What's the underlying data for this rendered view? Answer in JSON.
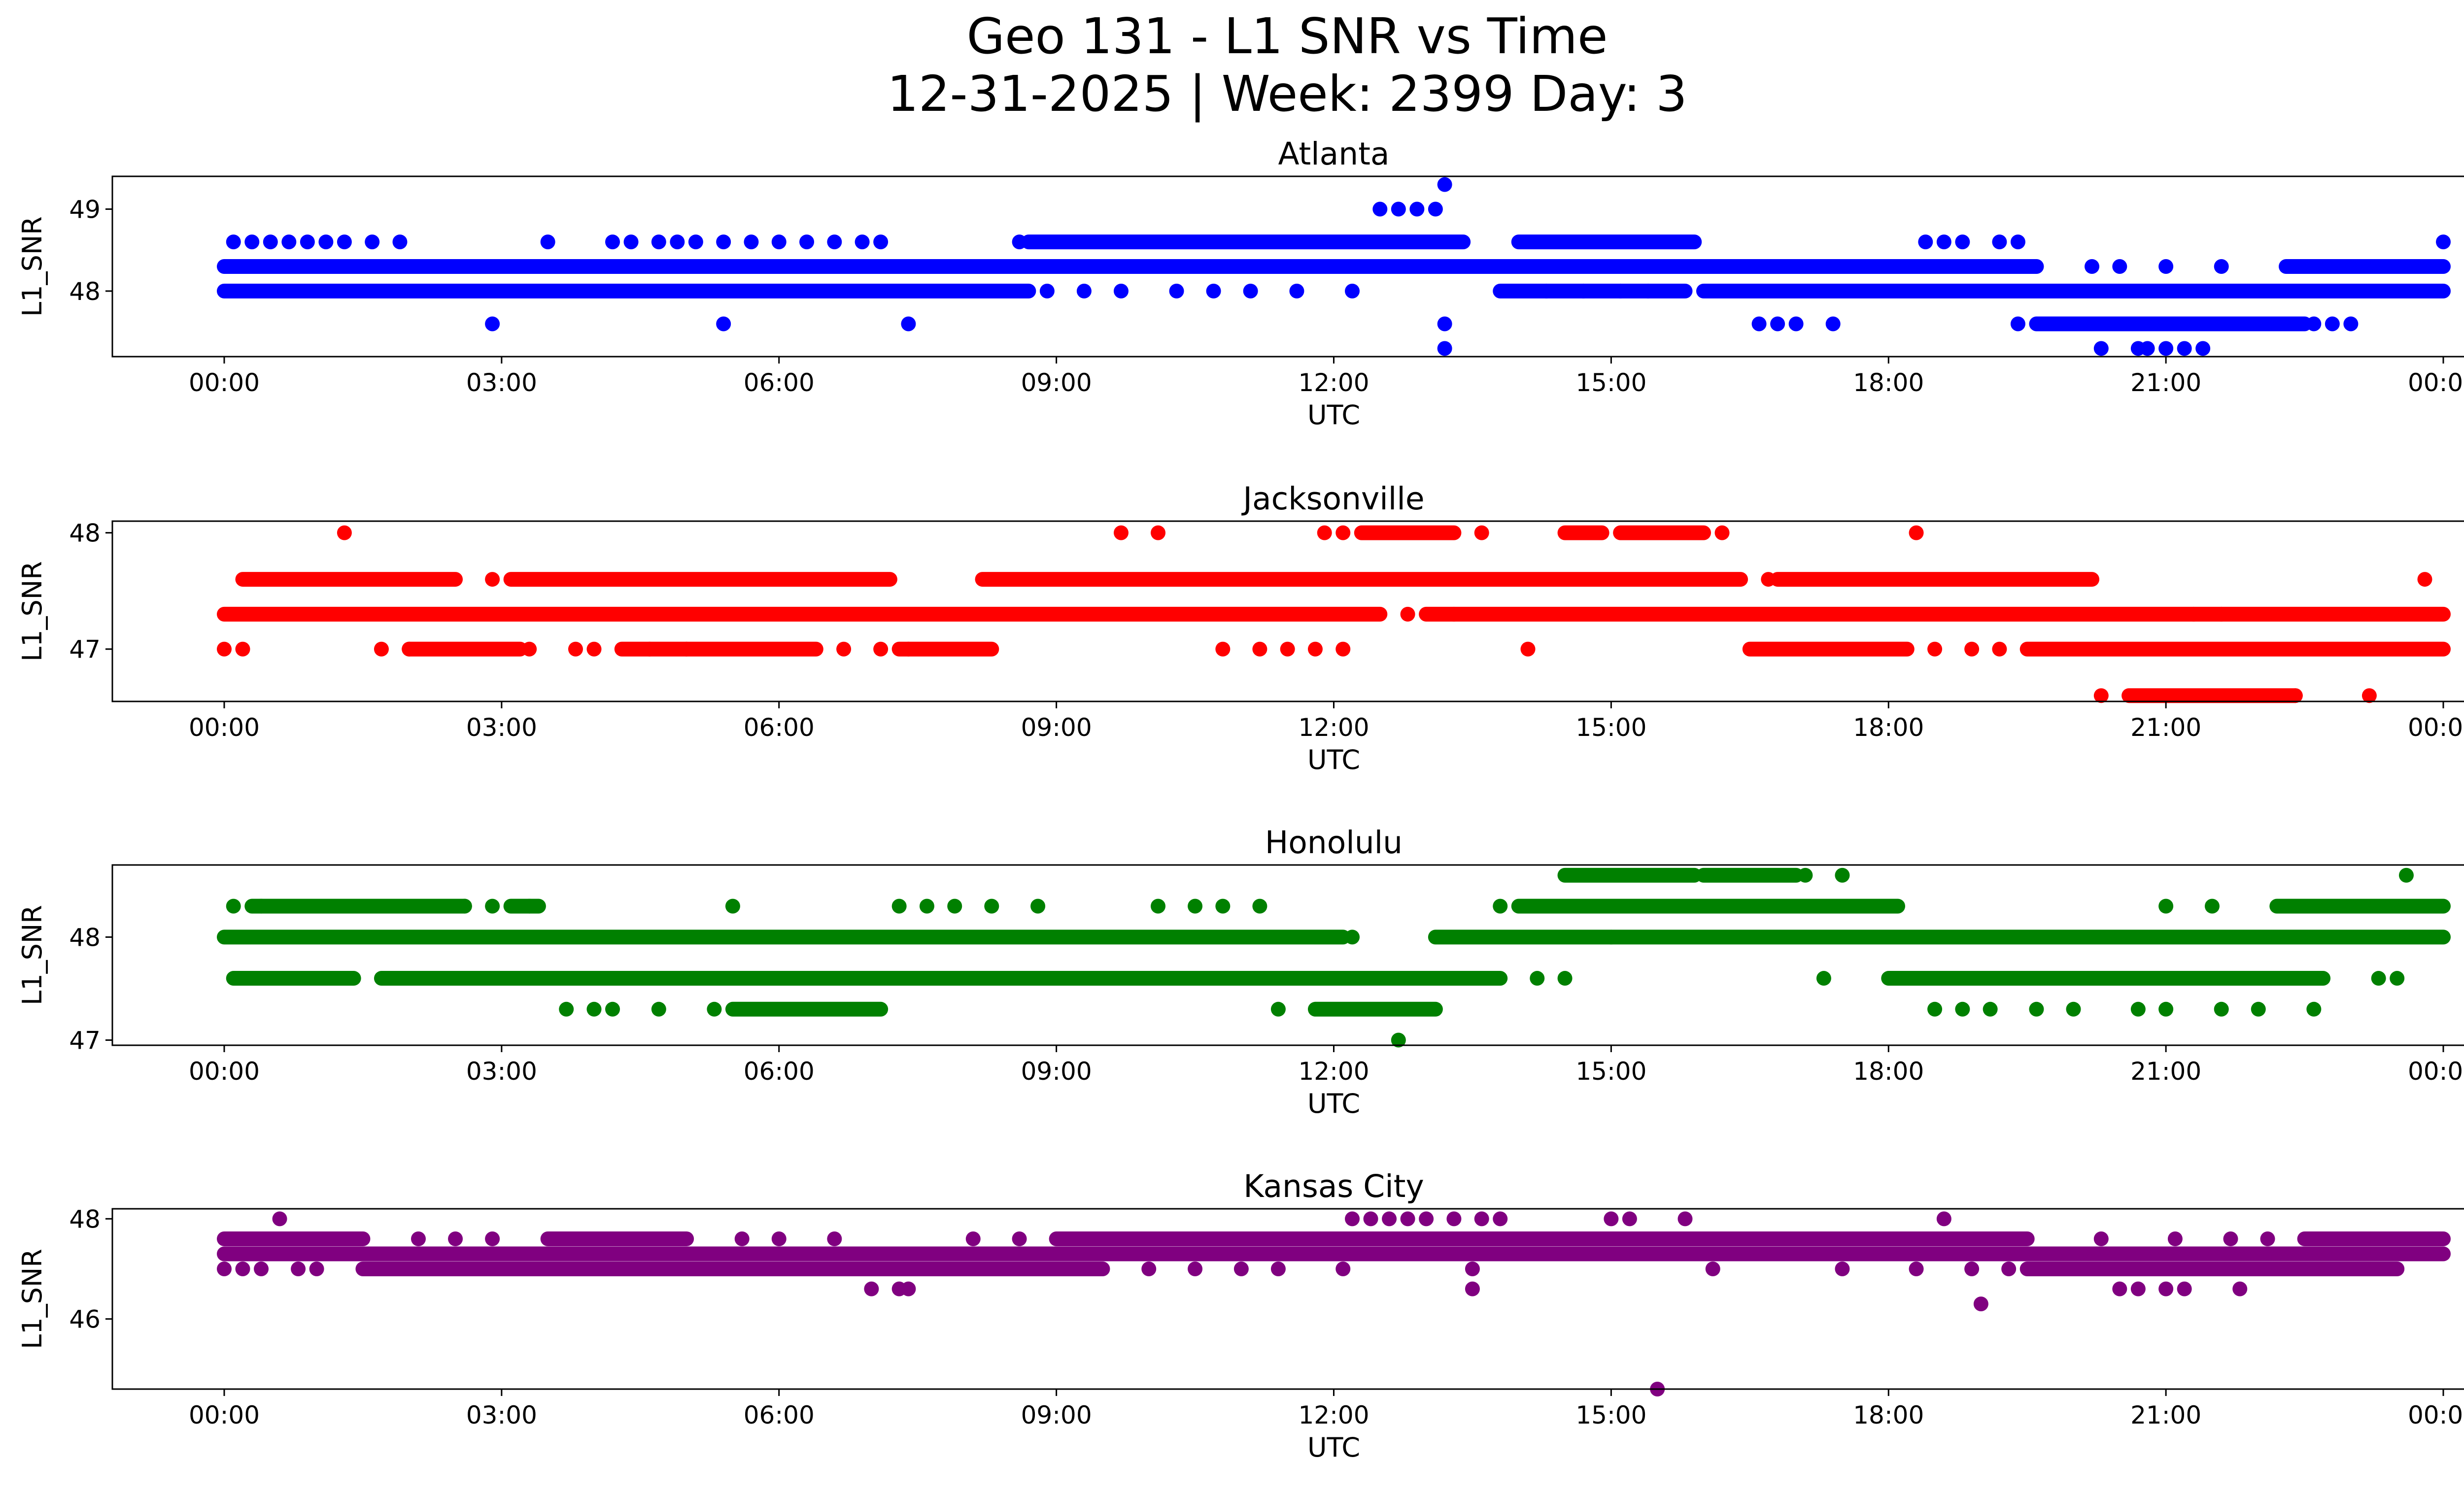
{
  "title_line1": "Geo 131 - L1 SNR vs Time",
  "title_line2": "12-31-2025 | Week: 2399 Day: 3",
  "chart_data": [
    {
      "type": "scatter",
      "title": "Atlanta",
      "xlabel": "UTC",
      "ylabel": "L1_SNR",
      "color": "#0000ff",
      "xlim": [
        "00:00",
        "24:00"
      ],
      "ylim": [
        47.2,
        49.4
      ],
      "x_ticks": [
        "00:00",
        "03:00",
        "06:00",
        "09:00",
        "12:00",
        "15:00",
        "18:00",
        "21:00",
        "00:00"
      ],
      "y_ticks": [
        "48",
        "49"
      ],
      "bands": [
        {
          "y": 48.3,
          "ranges": [
            [
              0.0,
              19.6
            ],
            [
              22.3,
              24.0
            ]
          ]
        },
        {
          "y": 48.0,
          "ranges": [
            [
              0.0,
              8.7
            ],
            [
              13.8,
              15.8
            ],
            [
              16.0,
              24.0
            ]
          ]
        },
        {
          "y": 48.6,
          "ranges": [
            [
              8.7,
              13.4
            ],
            [
              14.0,
              15.9
            ]
          ]
        },
        {
          "y": 47.6,
          "ranges": [
            [
              19.6,
              22.5
            ]
          ]
        }
      ],
      "points": [
        [
          0.1,
          48.6
        ],
        [
          0.3,
          48.6
        ],
        [
          0.5,
          48.6
        ],
        [
          0.7,
          48.6
        ],
        [
          0.9,
          48.6
        ],
        [
          1.1,
          48.6
        ],
        [
          1.3,
          48.6
        ],
        [
          1.6,
          48.6
        ],
        [
          1.9,
          48.6
        ],
        [
          2.9,
          47.6
        ],
        [
          3.5,
          48.6
        ],
        [
          4.2,
          48.6
        ],
        [
          4.4,
          48.6
        ],
        [
          4.7,
          48.6
        ],
        [
          4.9,
          48.6
        ],
        [
          5.1,
          48.6
        ],
        [
          5.4,
          48.6
        ],
        [
          5.7,
          48.6
        ],
        [
          6.0,
          48.6
        ],
        [
          6.3,
          48.6
        ],
        [
          6.6,
          48.6
        ],
        [
          6.9,
          48.6
        ],
        [
          7.1,
          48.6
        ],
        [
          5.4,
          47.6
        ],
        [
          7.4,
          47.6
        ],
        [
          8.6,
          48.6
        ],
        [
          8.9,
          48.0
        ],
        [
          9.3,
          48.0
        ],
        [
          9.7,
          48.0
        ],
        [
          10.3,
          48.0
        ],
        [
          10.7,
          48.0
        ],
        [
          11.1,
          48.0
        ],
        [
          11.6,
          48.0
        ],
        [
          12.2,
          48.0
        ],
        [
          12.5,
          49.0
        ],
        [
          12.7,
          49.0
        ],
        [
          12.9,
          49.0
        ],
        [
          13.1,
          49.0
        ],
        [
          13.2,
          49.3
        ],
        [
          13.2,
          47.6
        ],
        [
          13.2,
          47.3
        ],
        [
          14.3,
          48.0
        ],
        [
          14.7,
          48.0
        ],
        [
          15.1,
          48.0
        ],
        [
          15.4,
          48.0
        ],
        [
          16.6,
          47.6
        ],
        [
          16.8,
          47.6
        ],
        [
          17.0,
          47.6
        ],
        [
          17.4,
          47.6
        ],
        [
          18.4,
          48.6
        ],
        [
          18.6,
          48.6
        ],
        [
          18.8,
          48.6
        ],
        [
          19.2,
          48.6
        ],
        [
          19.4,
          48.6
        ],
        [
          19.4,
          47.6
        ],
        [
          20.2,
          48.3
        ],
        [
          20.5,
          48.3
        ],
        [
          21.0,
          48.3
        ],
        [
          21.6,
          48.3
        ],
        [
          20.3,
          47.3
        ],
        [
          20.7,
          47.3
        ],
        [
          20.8,
          47.3
        ],
        [
          21.0,
          47.3
        ],
        [
          21.2,
          47.3
        ],
        [
          21.4,
          47.3
        ],
        [
          22.6,
          47.6
        ],
        [
          22.8,
          47.6
        ],
        [
          23.0,
          47.6
        ],
        [
          24.0,
          48.6
        ]
      ]
    },
    {
      "type": "scatter",
      "title": "Jacksonville",
      "xlabel": "UTC",
      "ylabel": "L1_SNR",
      "color": "#ff0000",
      "xlim": [
        "00:00",
        "24:00"
      ],
      "ylim": [
        46.55,
        48.1
      ],
      "x_ticks": [
        "00:00",
        "03:00",
        "06:00",
        "09:00",
        "12:00",
        "15:00",
        "18:00",
        "21:00",
        "00:00"
      ],
      "y_ticks": [
        "47",
        "48"
      ],
      "bands": [
        {
          "y": 47.3,
          "ranges": [
            [
              0.0,
              12.5
            ],
            [
              13.0,
              24.0
            ]
          ]
        },
        {
          "y": 47.6,
          "ranges": [
            [
              0.2,
              2.5
            ],
            [
              3.1,
              7.2
            ],
            [
              8.2,
              16.4
            ],
            [
              16.8,
              20.2
            ]
          ]
        },
        {
          "y": 47.0,
          "ranges": [
            [
              2.0,
              3.2
            ],
            [
              4.3,
              6.4
            ],
            [
              7.3,
              8.3
            ],
            [
              16.5,
              18.2
            ],
            [
              19.5,
              24.0
            ]
          ]
        },
        {
          "y": 46.6,
          "ranges": [
            [
              20.6,
              22.4
            ]
          ]
        },
        {
          "y": 48.0,
          "ranges": [
            [
              12.3,
              13.3
            ],
            [
              14.5,
              14.9
            ],
            [
              15.1,
              16.0
            ]
          ]
        }
      ],
      "points": [
        [
          0.0,
          47.0
        ],
        [
          0.2,
          47.0
        ],
        [
          1.7,
          47.0
        ],
        [
          2.0,
          47.0
        ],
        [
          3.3,
          47.0
        ],
        [
          3.8,
          47.0
        ],
        [
          4.0,
          47.0
        ],
        [
          4.6,
          47.0
        ],
        [
          5.0,
          47.0
        ],
        [
          6.7,
          47.0
        ],
        [
          7.1,
          47.0
        ],
        [
          7.4,
          47.0
        ],
        [
          10.8,
          47.0
        ],
        [
          11.2,
          47.0
        ],
        [
          11.5,
          47.0
        ],
        [
          11.8,
          47.0
        ],
        [
          12.1,
          47.0
        ],
        [
          14.1,
          47.0
        ],
        [
          18.5,
          47.0
        ],
        [
          18.9,
          47.0
        ],
        [
          19.2,
          47.0
        ],
        [
          1.3,
          48.0
        ],
        [
          9.7,
          48.0
        ],
        [
          10.1,
          48.0
        ],
        [
          11.9,
          48.0
        ],
        [
          12.1,
          48.0
        ],
        [
          13.6,
          48.0
        ],
        [
          16.2,
          48.0
        ],
        [
          18.3,
          48.0
        ],
        [
          2.9,
          47.6
        ],
        [
          16.7,
          47.6
        ],
        [
          23.8,
          47.6
        ],
        [
          20.3,
          46.6
        ],
        [
          22.4,
          46.6
        ],
        [
          23.2,
          46.6
        ],
        [
          12.8,
          47.3
        ],
        [
          13.3,
          47.3
        ],
        [
          21.3,
          47.3
        ],
        [
          21.6,
          47.3
        ]
      ]
    },
    {
      "type": "scatter",
      "title": "Honolulu",
      "xlabel": "UTC",
      "ylabel": "L1_SNR",
      "color": "#008000",
      "xlim": [
        "00:00",
        "24:00"
      ],
      "ylim": [
        46.95,
        48.7
      ],
      "x_ticks": [
        "00:00",
        "03:00",
        "06:00",
        "09:00",
        "12:00",
        "15:00",
        "18:00",
        "21:00",
        "00:00"
      ],
      "y_ticks": [
        "47",
        "48"
      ],
      "bands": [
        {
          "y": 48.0,
          "ranges": [
            [
              0.0,
              12.1
            ],
            [
              13.1,
              24.0
            ]
          ]
        },
        {
          "y": 48.3,
          "ranges": [
            [
              0.3,
              2.6
            ],
            [
              3.1,
              3.4
            ],
            [
              14.0,
              18.1
            ],
            [
              22.2,
              24.0
            ]
          ]
        },
        {
          "y": 47.6,
          "ranges": [
            [
              0.1,
              1.4
            ],
            [
              1.7,
              13.8
            ],
            [
              18.0,
              22.7
            ]
          ]
        },
        {
          "y": 47.3,
          "ranges": [
            [
              5.5,
              7.1
            ],
            [
              11.8,
              13.1
            ]
          ]
        },
        {
          "y": 48.6,
          "ranges": [
            [
              14.5,
              15.9
            ],
            [
              16.0,
              17.0
            ]
          ]
        }
      ],
      "points": [
        [
          0.1,
          48.3
        ],
        [
          0.4,
          48.3
        ],
        [
          2.6,
          48.3
        ],
        [
          2.9,
          48.3
        ],
        [
          3.3,
          48.3
        ],
        [
          5.5,
          48.3
        ],
        [
          7.3,
          48.3
        ],
        [
          7.6,
          48.3
        ],
        [
          7.9,
          48.3
        ],
        [
          8.3,
          48.3
        ],
        [
          8.8,
          48.3
        ],
        [
          10.1,
          48.3
        ],
        [
          10.5,
          48.3
        ],
        [
          10.8,
          48.3
        ],
        [
          11.2,
          48.3
        ],
        [
          13.8,
          48.3
        ],
        [
          21.0,
          48.3
        ],
        [
          21.5,
          48.3
        ],
        [
          23.6,
          48.6
        ],
        [
          17.1,
          48.6
        ],
        [
          17.5,
          48.6
        ],
        [
          12.2,
          48.0
        ],
        [
          15.0,
          48.0
        ],
        [
          0.7,
          47.6
        ],
        [
          1.2,
          47.6
        ],
        [
          14.2,
          47.6
        ],
        [
          14.5,
          47.6
        ],
        [
          17.3,
          47.6
        ],
        [
          23.3,
          47.6
        ],
        [
          23.5,
          47.6
        ],
        [
          3.7,
          47.3
        ],
        [
          4.0,
          47.3
        ],
        [
          4.2,
          47.3
        ],
        [
          4.7,
          47.3
        ],
        [
          5.3,
          47.3
        ],
        [
          11.4,
          47.3
        ],
        [
          18.5,
          47.3
        ],
        [
          18.8,
          47.3
        ],
        [
          19.1,
          47.3
        ],
        [
          19.6,
          47.3
        ],
        [
          20.0,
          47.3
        ],
        [
          20.7,
          47.3
        ],
        [
          21.0,
          47.3
        ],
        [
          21.6,
          47.3
        ],
        [
          22.0,
          47.3
        ],
        [
          22.6,
          47.3
        ],
        [
          12.7,
          47.0
        ]
      ]
    },
    {
      "type": "scatter",
      "title": "Kansas City",
      "xlabel": "UTC",
      "ylabel": "L1_SNR",
      "color": "#800080",
      "xlim": [
        "00:00",
        "24:00"
      ],
      "ylim": [
        44.6,
        48.2
      ],
      "x_ticks": [
        "00:00",
        "03:00",
        "06:00",
        "09:00",
        "12:00",
        "15:00",
        "18:00",
        "21:00",
        "00:00"
      ],
      "y_ticks": [
        "46",
        "48"
      ],
      "bands": [
        {
          "y": 47.6,
          "ranges": [
            [
              0.0,
              1.5
            ],
            [
              3.5,
              5.0
            ],
            [
              9.0,
              19.5
            ],
            [
              22.5,
              24.0
            ]
          ]
        },
        {
          "y": 47.3,
          "ranges": [
            [
              0.0,
              24.0
            ]
          ]
        },
        {
          "y": 47.0,
          "ranges": [
            [
              1.5,
              9.5
            ],
            [
              19.5,
              23.5
            ]
          ]
        }
      ],
      "points": [
        [
          0.0,
          47.0
        ],
        [
          0.2,
          47.0
        ],
        [
          0.4,
          47.0
        ],
        [
          0.8,
          47.0
        ],
        [
          1.0,
          47.0
        ],
        [
          0.6,
          48.0
        ],
        [
          12.2,
          48.0
        ],
        [
          12.4,
          48.0
        ],
        [
          12.6,
          48.0
        ],
        [
          12.8,
          48.0
        ],
        [
          13.0,
          48.0
        ],
        [
          13.3,
          48.0
        ],
        [
          13.6,
          48.0
        ],
        [
          13.8,
          48.0
        ],
        [
          15.0,
          48.0
        ],
        [
          15.2,
          48.0
        ],
        [
          15.8,
          48.0
        ],
        [
          18.6,
          48.0
        ],
        [
          7.0,
          46.6
        ],
        [
          7.3,
          46.6
        ],
        [
          7.4,
          46.6
        ],
        [
          13.5,
          46.6
        ],
        [
          20.5,
          46.6
        ],
        [
          20.7,
          46.6
        ],
        [
          21.0,
          46.6
        ],
        [
          21.2,
          46.6
        ],
        [
          21.8,
          46.6
        ],
        [
          19.0,
          46.3
        ],
        [
          15.5,
          44.6
        ],
        [
          10.0,
          47.0
        ],
        [
          10.5,
          47.0
        ],
        [
          11.0,
          47.0
        ],
        [
          11.4,
          47.0
        ],
        [
          12.1,
          47.0
        ],
        [
          13.5,
          47.0
        ],
        [
          16.1,
          47.0
        ],
        [
          17.5,
          47.0
        ],
        [
          18.3,
          47.0
        ],
        [
          18.9,
          47.0
        ],
        [
          19.3,
          47.0
        ],
        [
          2.1,
          47.6
        ],
        [
          2.5,
          47.6
        ],
        [
          2.9,
          47.6
        ],
        [
          5.6,
          47.6
        ],
        [
          6.0,
          47.6
        ],
        [
          6.6,
          47.6
        ],
        [
          8.1,
          47.6
        ],
        [
          8.6,
          47.6
        ],
        [
          20.3,
          47.6
        ],
        [
          21.1,
          47.6
        ],
        [
          21.7,
          47.6
        ],
        [
          22.1,
          47.6
        ]
      ]
    }
  ]
}
